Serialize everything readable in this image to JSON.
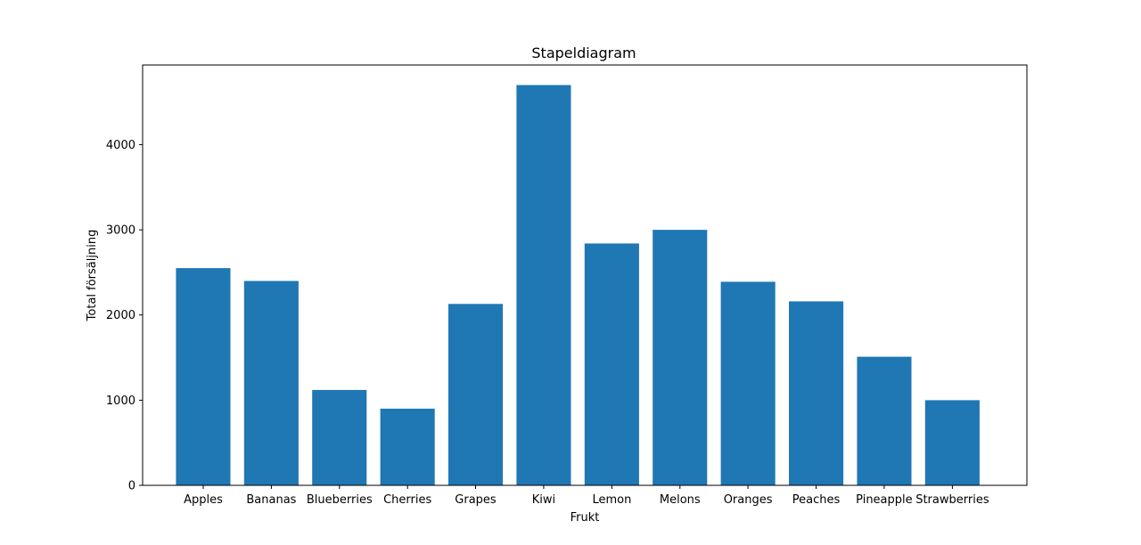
{
  "chart_data": {
    "type": "bar",
    "title": "Stapeldiagram",
    "xlabel": "Frukt",
    "ylabel": "Total försäljning",
    "categories": [
      "Apples",
      "Bananas",
      "Blueberries",
      "Cherries",
      "Grapes",
      "Kiwi",
      "Lemon",
      "Melons",
      "Oranges",
      "Peaches",
      "Pineapple",
      "Strawberries"
    ],
    "values": [
      2550,
      2400,
      1120,
      900,
      2130,
      4700,
      2840,
      3000,
      2390,
      2160,
      1510,
      1000
    ],
    "yticks": [
      0,
      1000,
      2000,
      3000,
      4000
    ],
    "ylim": [
      0,
      4935
    ],
    "color": "#1f77b4",
    "grid": false,
    "legend": "none"
  }
}
